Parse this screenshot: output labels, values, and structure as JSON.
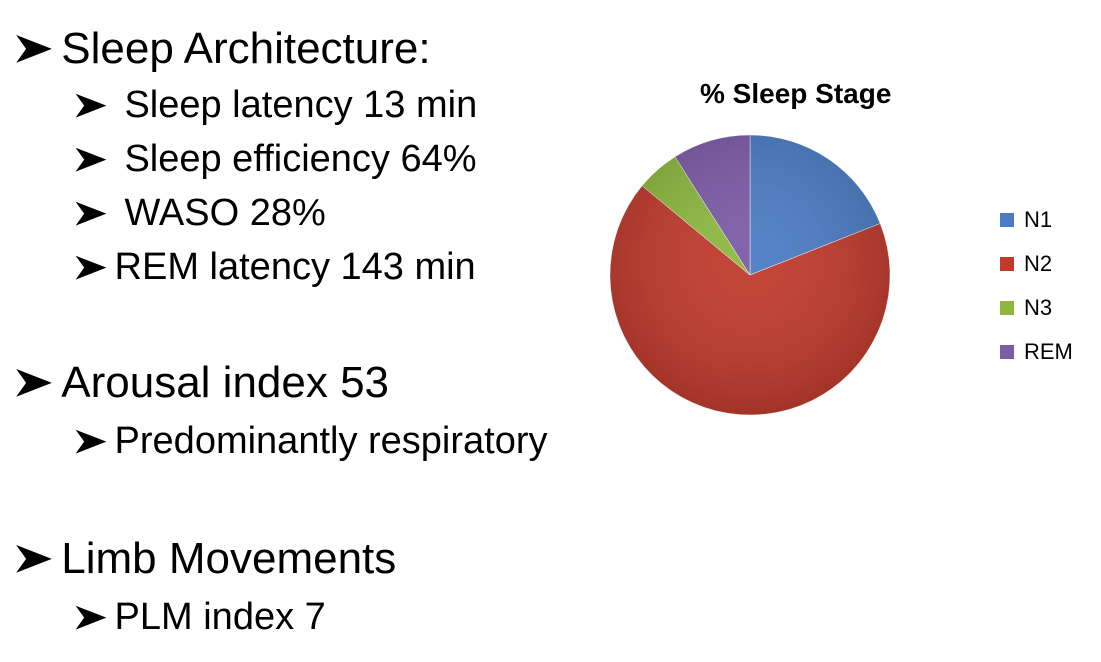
{
  "slide": {
    "sections": [
      {
        "heading": "Sleep Architecture:",
        "items": [
          "Sleep latency 13 min",
          "Sleep efficiency 64%",
          "WASO 28%",
          "REM latency 143 min"
        ]
      },
      {
        "heading": "Arousal index 53",
        "items": [
          "Predominantly respiratory"
        ]
      },
      {
        "heading": "Limb Movements",
        "items": [
          "PLM index 7"
        ]
      }
    ]
  },
  "chart_data": {
    "type": "pie",
    "title": "% Sleep Stage",
    "categories": [
      "N1",
      "N2",
      "N3",
      "REM"
    ],
    "values": [
      19,
      67,
      5,
      9
    ],
    "colors": [
      "#4a7bc4",
      "#c0392b",
      "#8cb83e",
      "#7b5aa6"
    ],
    "legend_position": "right"
  }
}
